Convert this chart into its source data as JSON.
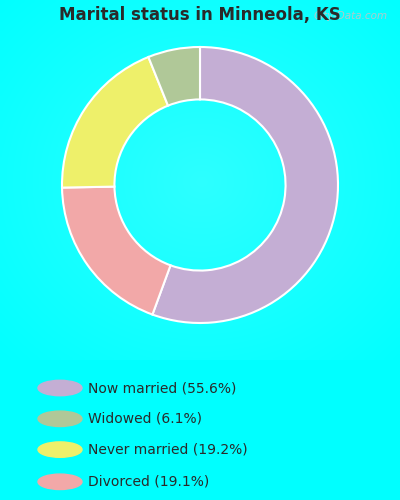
{
  "title": "Marital status in Minneola, KS",
  "title_color": "#2a2a2a",
  "title_fontsize": 12,
  "bg_color": "#00ffff",
  "chart_bg": "#cce8cc",
  "legend_bg": "#00ffff",
  "values": [
    55.6,
    19.1,
    19.2,
    6.1
  ],
  "colors": [
    "#c4aed4",
    "#f2a8a8",
    "#eef06a",
    "#b0c898"
  ],
  "legend_labels": [
    "Now married (55.6%)",
    "Widowed (6.1%)",
    "Never married (19.2%)",
    "Divorced (19.1%)"
  ],
  "legend_colors": [
    "#c4aed4",
    "#b0c898",
    "#eef06a",
    "#f2a8a8"
  ],
  "donut_width": 0.38,
  "startangle": 90,
  "watermark": "City-Data.com"
}
